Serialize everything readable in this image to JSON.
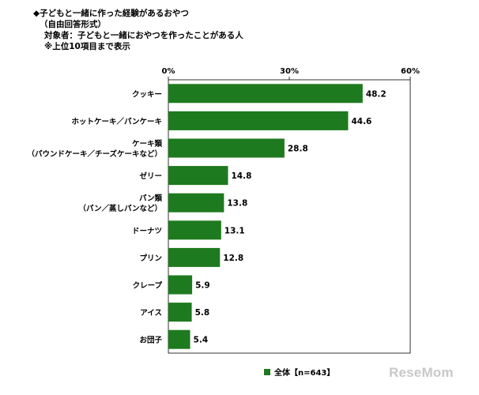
{
  "header": {
    "line1": "◆子どもと一緒に作った経験があるおやつ",
    "line2": "（自由回答形式）",
    "line3": "対象者：子どもと一緒におやつを作ったことがある人",
    "line4": "※上位10項目まで表示"
  },
  "chart_data": {
    "type": "bar",
    "orientation": "horizontal",
    "categories": [
      [
        "クッキー"
      ],
      [
        "ホットケーキ／パンケーキ"
      ],
      [
        "ケーキ類",
        "（パウンドケーキ／チーズケーキなど）"
      ],
      [
        "ゼリー"
      ],
      [
        "パン類",
        "（パン／蒸しパンなど）"
      ],
      [
        "ドーナツ"
      ],
      [
        "プリン"
      ],
      [
        "クレープ"
      ],
      [
        "アイス"
      ],
      [
        "お団子"
      ]
    ],
    "series": [
      {
        "name": "全体【n=643】",
        "values": [
          48.2,
          44.6,
          28.8,
          14.8,
          13.8,
          13.1,
          12.8,
          5.9,
          5.8,
          5.4
        ],
        "color": "#1e7a1e"
      }
    ],
    "value_labels": [
      "48.2",
      "44.6",
      "28.8",
      "14.8",
      "13.8",
      "13.1",
      "12.8",
      "5.9",
      "5.8",
      "5.4"
    ],
    "xlim": [
      0,
      60
    ],
    "ticks": [
      0,
      30,
      60
    ],
    "tick_labels": [
      "0%",
      "30%",
      "60%"
    ]
  },
  "legend": {
    "label": "全体【n=643】"
  },
  "watermark": "ReseMom"
}
